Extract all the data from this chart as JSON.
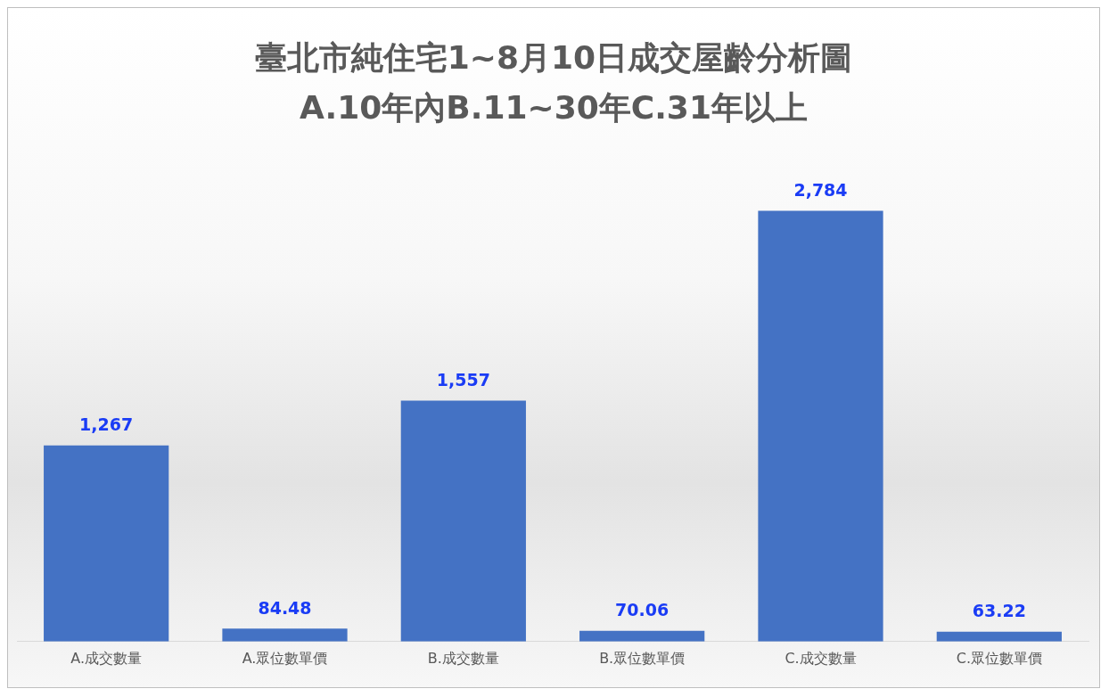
{
  "chart_data": {
    "type": "bar",
    "title": "臺北市純住宅1~8月10日成交屋齡分析圖",
    "subtitle": "A.10年內B.11~30年C.31年以上",
    "categories": [
      "A.成交數量",
      "A.眾位數單價",
      "B.成交數量",
      "B.眾位數單價",
      "C.成交數量",
      "C.眾位數單價"
    ],
    "values": [
      1267,
      84.48,
      1557,
      70.06,
      2784,
      63.22
    ],
    "value_labels": [
      "1,267",
      "84.48",
      "1,557",
      "70.06",
      "2,784",
      "63.22"
    ],
    "color": "#4472c4",
    "tick_labels": "x",
    "grid": false,
    "legend": false
  }
}
